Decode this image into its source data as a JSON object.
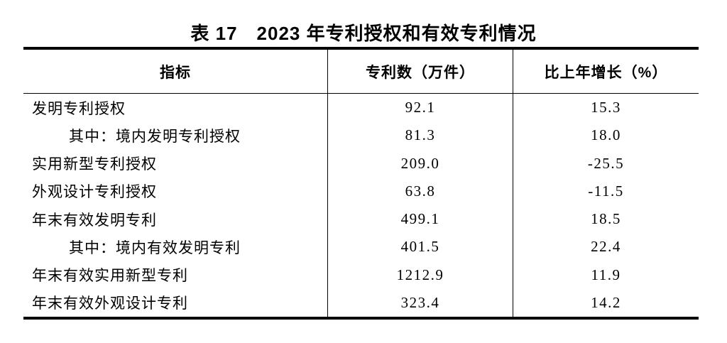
{
  "title": "表 17　2023 年专利授权和有效专利情况",
  "table": {
    "columns": [
      {
        "label": "指标"
      },
      {
        "label": "专利数（万件）"
      },
      {
        "label": "比上年增长（%）"
      }
    ],
    "rows": [
      {
        "indicator": "发明专利授权",
        "patents": "92.1",
        "growth": "15.3",
        "indent": false
      },
      {
        "indicator": "其中：境内发明专利授权",
        "patents": "81.3",
        "growth": "18.0",
        "indent": true
      },
      {
        "indicator": "实用新型专利授权",
        "patents": "209.0",
        "growth": "-25.5",
        "indent": false
      },
      {
        "indicator": "外观设计专利授权",
        "patents": "63.8",
        "growth": "-11.5",
        "indent": false
      },
      {
        "indicator": "年末有效发明专利",
        "patents": "499.1",
        "growth": "18.5",
        "indent": false
      },
      {
        "indicator": "其中：境内有效发明专利",
        "patents": "401.5",
        "growth": "22.4",
        "indent": true
      },
      {
        "indicator": "年末有效实用新型专利",
        "patents": "1212.9",
        "growth": "11.9",
        "indent": false
      },
      {
        "indicator": "年末有效外观设计专利",
        "patents": "323.4",
        "growth": "14.2",
        "indent": false
      }
    ]
  }
}
